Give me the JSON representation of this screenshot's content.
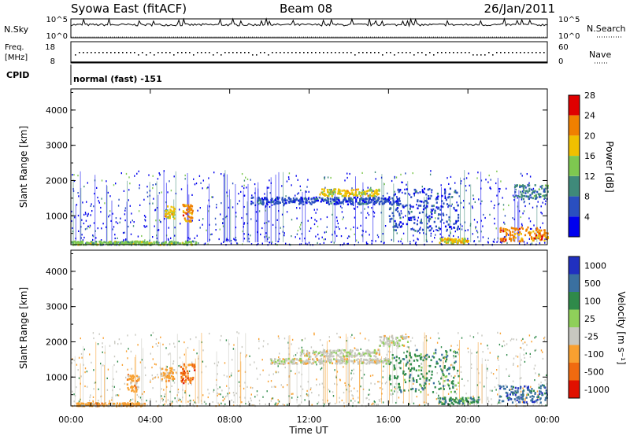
{
  "header": {
    "station": "Syowa East (fitACF)",
    "beam": "Beam 08",
    "date": "26/Jan/2011"
  },
  "noise_panel": {
    "left_label": "N.Sky",
    "right_label": "N.Search",
    "left_ticks": [
      "10^5",
      "10^0"
    ],
    "right_ticks": [
      "10^5",
      "10^0"
    ]
  },
  "freq_panel": {
    "left_label_line1": "Freq.",
    "left_label_line2": "[MHz]",
    "left_ticks": [
      "18",
      "8"
    ],
    "right_label": "Nave",
    "right_ticks": [
      "60",
      "0"
    ]
  },
  "cpid_panel": {
    "label": "CPID",
    "value": "normal (fast) -151"
  },
  "chart_data": [
    {
      "type": "heatmap",
      "name": "power",
      "ylabel": "Slant Range [km]",
      "ylim": [
        180,
        4600
      ],
      "yticks": [
        "1000",
        "2000",
        "3000",
        "4000"
      ],
      "colorbar_label": "Power [dB]",
      "colorbar_ticks": [
        "4",
        "8",
        "12",
        "16",
        "20",
        "24",
        "28"
      ],
      "colors": [
        "#0000ee",
        "#2a4fc0",
        "#3f8a7a",
        "#7ec850",
        "#f0c000",
        "#f08000",
        "#e00000"
      ],
      "features": [
        {
          "t0": 0.0,
          "t1": 6.3,
          "r0": 200,
          "r1": 300,
          "level": 3
        },
        {
          "t0": 4.7,
          "t1": 5.2,
          "r0": 950,
          "r1": 1300,
          "level": 4
        },
        {
          "t0": 5.6,
          "t1": 6.1,
          "r0": 850,
          "r1": 1350,
          "level": 5
        },
        {
          "t0": 9.0,
          "t1": 16.5,
          "r0": 1350,
          "r1": 1550,
          "level": 1
        },
        {
          "t0": 12.5,
          "t1": 15.5,
          "r0": 1580,
          "r1": 1780,
          "level": 4
        },
        {
          "t0": 16.0,
          "t1": 19.5,
          "r0": 600,
          "r1": 1800,
          "level": 1
        },
        {
          "t0": 18.5,
          "t1": 20.0,
          "r0": 250,
          "r1": 400,
          "level": 4
        },
        {
          "t0": 21.5,
          "t1": 24.0,
          "r0": 300,
          "r1": 700,
          "level": 5
        },
        {
          "t0": 22.3,
          "t1": 24.0,
          "r0": 1500,
          "r1": 1900,
          "level": 2
        }
      ]
    },
    {
      "type": "heatmap",
      "name": "velocity",
      "ylabel": "Slant Range [km]",
      "ylim": [
        180,
        4600
      ],
      "yticks": [
        "1000",
        "2000",
        "3000",
        "4000"
      ],
      "xlabel": "Time UT",
      "xticks": [
        "00:00",
        "04:00",
        "08:00",
        "12:00",
        "16:00",
        "20:00",
        "00:00"
      ],
      "colorbar_label": "Velocity [m s⁻¹]",
      "colorbar_ticks": [
        "1000",
        "500",
        "100",
        "25",
        "-25",
        "-100",
        "-500",
        "-1000"
      ],
      "colors": [
        "#2030c0",
        "#3a70a0",
        "#2f8a4a",
        "#8fd05a",
        "#c8c8c0",
        "#f8a030",
        "#f06a10",
        "#e01000"
      ],
      "features": [
        {
          "t0": 0.2,
          "t1": 3.8,
          "r0": 200,
          "r1": 290,
          "level": 5
        },
        {
          "t0": 2.8,
          "t1": 3.4,
          "r0": 600,
          "r1": 1100,
          "level": 5
        },
        {
          "t0": 4.5,
          "t1": 5.2,
          "r0": 900,
          "r1": 1300,
          "level": 5
        },
        {
          "t0": 5.5,
          "t1": 6.2,
          "r0": 850,
          "r1": 1400,
          "level": 6
        },
        {
          "t0": 10.0,
          "t1": 16.0,
          "r0": 1400,
          "r1": 1550,
          "level": 4
        },
        {
          "t0": 11.5,
          "t1": 15.5,
          "r0": 1600,
          "r1": 1800,
          "level": 4
        },
        {
          "t0": 15.5,
          "t1": 17.0,
          "r0": 1900,
          "r1": 2200,
          "level": 4
        },
        {
          "t0": 16.0,
          "t1": 19.5,
          "r0": 600,
          "r1": 1800,
          "level": 2
        },
        {
          "t0": 18.5,
          "t1": 20.5,
          "r0": 250,
          "r1": 450,
          "level": 2
        },
        {
          "t0": 21.5,
          "t1": 24.0,
          "r0": 300,
          "r1": 800,
          "level": 1
        }
      ]
    }
  ]
}
